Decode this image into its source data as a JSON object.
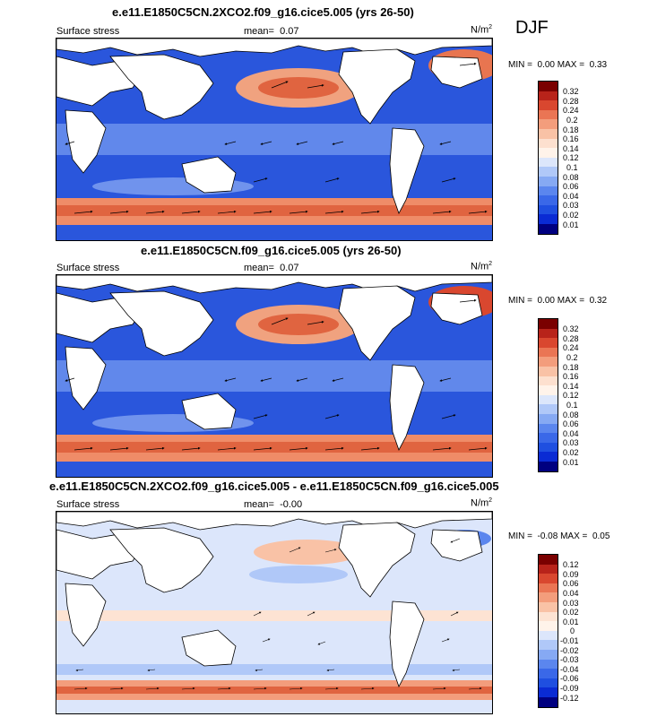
{
  "season": "DJF",
  "panels": [
    {
      "title": "e.e11.E1850C5CN.2XCO2.f09_g16.cice5.005 (yrs 26-50)",
      "left_label": "Surface stress",
      "mean_label": "mean=",
      "mean_value": "0.07",
      "units": "N/m",
      "units_sup": "2",
      "min_label": "MIN =",
      "min_value": "0.00",
      "max_label": "MAX =",
      "max_value": "0.33",
      "levels": [
        "0.32",
        "0.28",
        "0.24",
        "0.2",
        "0.18",
        "0.16",
        "0.14",
        "0.12",
        "0.1",
        "0.08",
        "0.06",
        "0.04",
        "0.03",
        "0.02",
        "0.01"
      ]
    },
    {
      "title": "e.e11.E1850C5CN.f09_g16.cice5.005 (yrs 26-50)",
      "left_label": "Surface stress",
      "mean_label": "mean=",
      "mean_value": "0.07",
      "units": "N/m",
      "units_sup": "2",
      "min_label": "MIN =",
      "min_value": "0.00",
      "max_label": "MAX =",
      "max_value": "0.32",
      "levels": [
        "0.32",
        "0.28",
        "0.24",
        "0.2",
        "0.18",
        "0.16",
        "0.14",
        "0.12",
        "0.1",
        "0.08",
        "0.06",
        "0.04",
        "0.03",
        "0.02",
        "0.01"
      ]
    },
    {
      "title": "e.e11.E1850C5CN.2XCO2.f09_g16.cice5.005 - e.e11.E1850C5CN.f09_g16.cice5.005",
      "left_label": "Surface stress",
      "mean_label": "mean=",
      "mean_value": "-0.00",
      "units": "N/m",
      "units_sup": "2",
      "min_label": "MIN =",
      "min_value": "-0.08",
      "max_label": "MAX =",
      "max_value": "0.05",
      "levels": [
        "0.12",
        "0.09",
        "0.06",
        "0.04",
        "0.03",
        "0.02",
        "0.01",
        "0",
        "-0.01",
        "-0.02",
        "-0.03",
        "-0.04",
        "-0.06",
        "-0.09",
        "-0.12"
      ]
    }
  ],
  "colors": {
    "abs_scale": [
      "#000080",
      "#0a2bd4",
      "#1f4fe0",
      "#3a68e8",
      "#5b86ee",
      "#86a9f3",
      "#b0c8f8",
      "#dce6fb",
      "#fde0cf",
      "#f9c2a6",
      "#f39d7c",
      "#ea7554",
      "#d9472f",
      "#b8231a",
      "#7a0000",
      "#5a0000"
    ],
    "diff_scale": [
      "#000080",
      "#0a2bd4",
      "#1f4fe0",
      "#3a68e8",
      "#5b86ee",
      "#86a9f3",
      "#b0c8f8",
      "#dce6fb",
      "#fde3d3",
      "#f9c2a6",
      "#f39d7c",
      "#ea7554",
      "#d9472f",
      "#b8231a",
      "#7a0000",
      "#5a0000"
    ],
    "land": "#ffffff",
    "coast": "#000000"
  }
}
